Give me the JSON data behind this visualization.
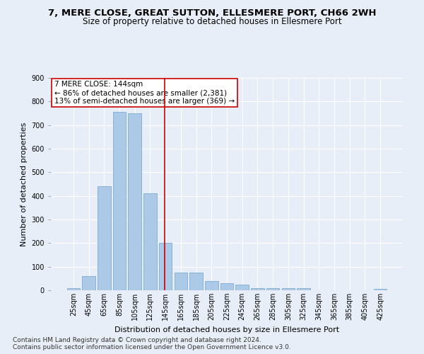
{
  "title1": "7, MERE CLOSE, GREAT SUTTON, ELLESMERE PORT, CH66 2WH",
  "title2": "Size of property relative to detached houses in Ellesmere Port",
  "xlabel": "Distribution of detached houses by size in Ellesmere Port",
  "ylabel": "Number of detached properties",
  "categories": [
    "25sqm",
    "45sqm",
    "65sqm",
    "85sqm",
    "105sqm",
    "125sqm",
    "145sqm",
    "165sqm",
    "185sqm",
    "205sqm",
    "225sqm",
    "245sqm",
    "265sqm",
    "285sqm",
    "305sqm",
    "325sqm",
    "345sqm",
    "365sqm",
    "385sqm",
    "405sqm",
    "425sqm"
  ],
  "values": [
    10,
    60,
    440,
    755,
    750,
    410,
    200,
    75,
    75,
    40,
    30,
    25,
    10,
    10,
    10,
    10,
    0,
    0,
    0,
    0,
    7
  ],
  "bar_color": "#adc9e8",
  "bar_edge_color": "#7aadd4",
  "vline_x": 5.93,
  "vline_color": "#cc0000",
  "annotation_text": "7 MERE CLOSE: 144sqm\n← 86% of detached houses are smaller (2,381)\n13% of semi-detached houses are larger (369) →",
  "annotation_box_color": "#ffffff",
  "annotation_box_edge": "#cc0000",
  "ylim": [
    0,
    900
  ],
  "yticks": [
    0,
    100,
    200,
    300,
    400,
    500,
    600,
    700,
    800,
    900
  ],
  "footnote1": "Contains HM Land Registry data © Crown copyright and database right 2024.",
  "footnote2": "Contains public sector information licensed under the Open Government Licence v3.0.",
  "bg_color": "#e8eef8",
  "plot_bg_color": "#e8eef8",
  "title1_fontsize": 9.5,
  "title2_fontsize": 8.5,
  "xlabel_fontsize": 8,
  "ylabel_fontsize": 8,
  "tick_fontsize": 7,
  "annotation_fontsize": 7.5,
  "footnote_fontsize": 6.5
}
